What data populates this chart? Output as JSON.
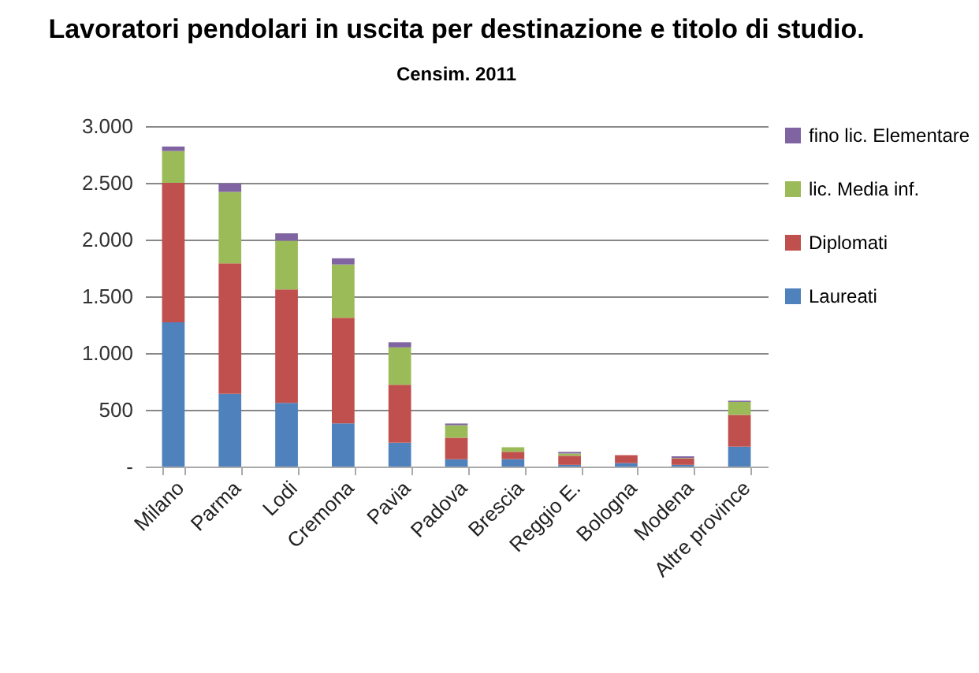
{
  "chart_data": {
    "type": "bar",
    "title": "Lavoratori pendolari in uscita per destinazione e titolo di studio.",
    "subtitle": "Censim. 2011",
    "categories": [
      "Milano",
      "Parma",
      "Lodi",
      "Cremona",
      "Pavia",
      "Padova",
      "Brescia",
      "Reggio E.",
      "Bologna",
      "Modena",
      "Altre province"
    ],
    "stacked": true,
    "series": [
      {
        "name": "Laureati",
        "color": "#4f81bd",
        "values": [
          1270,
          640,
          560,
          380,
          210,
          64,
          65,
          15,
          30,
          15,
          175
        ]
      },
      {
        "name": "Diplomati",
        "color": "#c0504d",
        "values": [
          1230,
          1150,
          1000,
          930,
          510,
          190,
          65,
          80,
          70,
          55,
          280
        ]
      },
      {
        "name": "lic. Media inf.",
        "color": "#9bbb59",
        "values": [
          280,
          630,
          430,
          470,
          330,
          110,
          40,
          20,
          null,
          5,
          115
        ]
      },
      {
        "name": "fino lic. Elementare",
        "color": "#8064a2",
        "values": [
          40,
          75,
          65,
          55,
          45,
          15,
          null,
          14,
          null,
          15,
          10
        ]
      }
    ],
    "ylim": [
      0,
      3000
    ],
    "yticks": [
      {
        "value": 0,
        "label": "-"
      },
      {
        "value": 500,
        "label": "500"
      },
      {
        "value": 1000,
        "label": "1.000"
      },
      {
        "value": 1500,
        "label": "1.500"
      },
      {
        "value": 2000,
        "label": "2.000"
      },
      {
        "value": 2500,
        "label": "2.500"
      },
      {
        "value": 3000,
        "label": "3.000"
      }
    ],
    "grid": "y",
    "legend": "right"
  }
}
